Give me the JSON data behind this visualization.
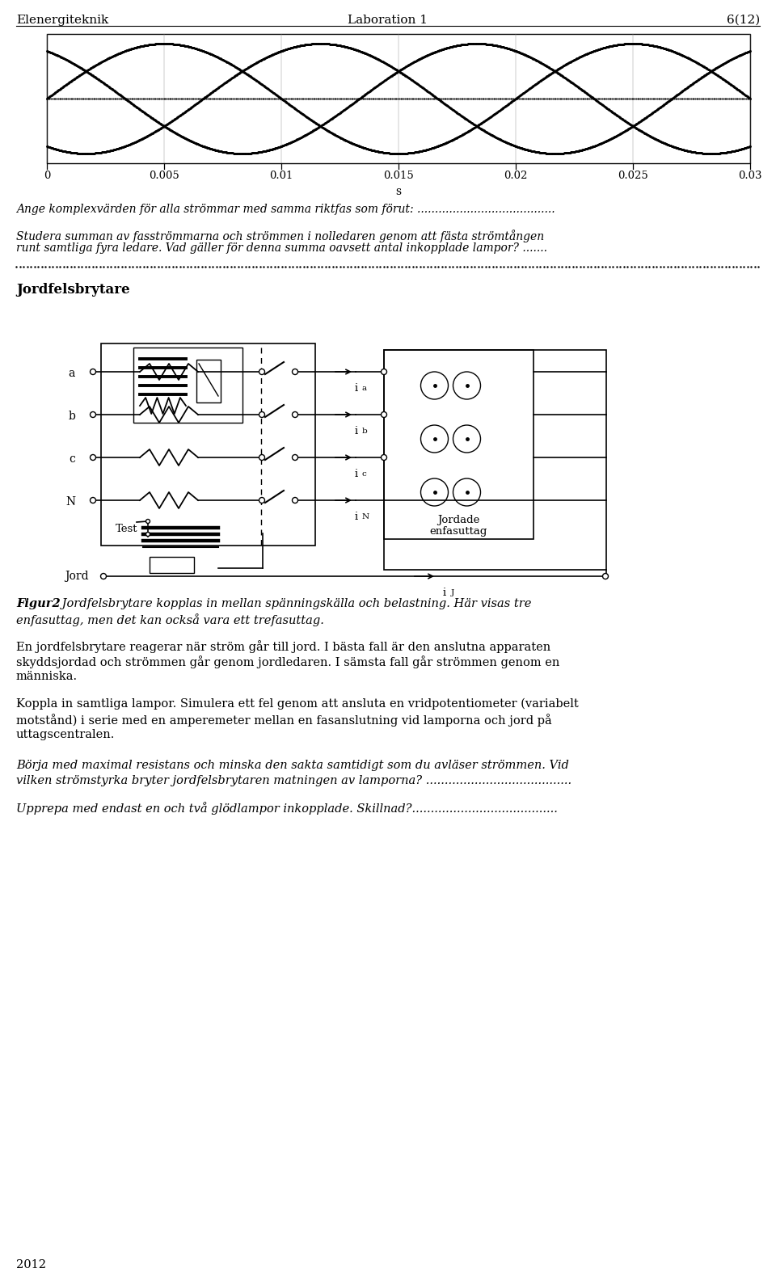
{
  "page_width": 9.6,
  "page_height": 15.85,
  "dpi": 100,
  "background_color": "#ffffff",
  "header_left": "Elenergiteknik",
  "header_center": "Laboration 1",
  "header_right": "6(12)",
  "xlabel_s": "s",
  "x_ticks": [
    0,
    0.005,
    0.01,
    0.015,
    0.02,
    0.025,
    0.03
  ],
  "section_title": "Jordfelsbrytare",
  "para1": "Ange komplexvärden för alla strömmar med samma riktfas som förut: .......................................",
  "para2_line1": "Studera summan av fasströmmarna och strömmen i nolledaren genom att fästa strömtången",
  "para2_line2": "runt samtliga fyra ledare. Vad gäller för denna summa oavsett antal inkopplade lampor? .......",
  "cap_bold": "Figur2",
  "cap_rest_line1": " Jordfelsbrytare kopplas in mellan spänningskälla och belastning. Här visas tre",
  "cap_rest_line2": "enfasuttag, men det kan också vara ett trefasuttag.",
  "p3_line1": "En jordfelsbrytare reagerar när ström går till jord. I bästa fall är den anslutna apparaten",
  "p3_line2": "skyddsjordad och strömmen går genom jordledaren. I sämsta fall går strömmen genom en",
  "p3_line3": "människa.",
  "p4_line1": "Koppla in samtliga lampor. Simulera ett fel genom att ansluta en vridpotentiometer (variabelt",
  "p4_line2": "motstånd) i serie med en amperemeter mellan en fasanslutning vid lamporna och jord på",
  "p4_line3": "uttagscentralen.",
  "p5_line1": "Börja med maximal resistans och minska den sakta samtidigt som du avläser strömmen. Vid",
  "p5_line2": "vilken strömstyrka bryter jordfelsbrytaren matningen av lamporna? .......................................",
  "p6_line1": "Upprepa med endast en och två glödlampor inkopplade. Skillnad?.......................................",
  "footer": "2012",
  "current_labels": [
    "ia",
    "ib",
    "ic",
    "iN"
  ],
  "label_names": [
    "a",
    "b",
    "c",
    "N"
  ],
  "socket_label1": "Jordade",
  "socket_label2": "enfasuttag",
  "jord_label": "Jord",
  "test_label": "Test"
}
